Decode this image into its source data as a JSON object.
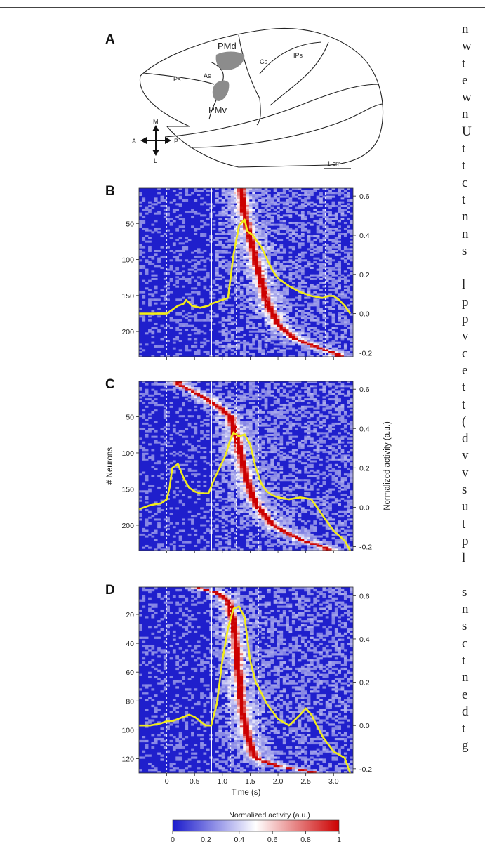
{
  "panels": [
    "A",
    "B",
    "C",
    "D"
  ],
  "brain": {
    "labels": {
      "pmd": "PMd",
      "pmv": "PMv",
      "as": "As",
      "ps": "Ps",
      "cs": "Cs",
      "ips": "IPs"
    },
    "compass": {
      "m": "M",
      "l": "L",
      "a": "A",
      "p": "P"
    },
    "scalebar": "1 cm",
    "area_color": "#8c8c8c"
  },
  "axes": {
    "ylabel": "# Neurons",
    "xlabel": "Time (s)",
    "right_label": "Normalized activity (a.u.)",
    "x_ticks": [
      "0",
      "0.5",
      "1.0",
      "1.5",
      "2.0",
      "2.5",
      "3.0"
    ],
    "right_ticks": [
      "0.6",
      "0.4",
      "0.2",
      "0.0",
      "-0.2"
    ]
  },
  "colorbar": {
    "title": "Normalized activity (a.u.)",
    "ticks": [
      "0",
      "0.2",
      "0.4",
      "0.6",
      "0.8",
      "1"
    ],
    "colors": [
      "#1a1acc",
      "#ffffff",
      "#cc0000"
    ]
  },
  "chart_data": [
    {
      "type": "heatmap",
      "panel": "B",
      "ylabel": "# Neurons",
      "xlim": [
        -0.5,
        3.35
      ],
      "ylim_neurons": [
        1,
        235
      ],
      "y_ticks": [
        50,
        100,
        150,
        200
      ],
      "right_ylim": [
        -0.22,
        0.64
      ],
      "markers_x": [
        0,
        0.8,
        1.25,
        1.8,
        2.85
      ],
      "event_line_solid_x": 0.8,
      "peak_ridge": {
        "x": [
          1.35,
          1.4,
          1.5,
          1.6,
          1.7,
          1.8,
          2.0,
          2.3,
          2.7,
          3.1
        ],
        "neuron": [
          10,
          40,
          70,
          100,
          130,
          160,
          190,
          210,
          222,
          232
        ]
      },
      "series": [
        {
          "x": [
            -0.5,
            -0.3,
            -0.1,
            0.0,
            0.1,
            0.2,
            0.3,
            0.35,
            0.45,
            0.6,
            0.75,
            0.8,
            0.9,
            1.0,
            1.1,
            1.2,
            1.3,
            1.4,
            1.45,
            1.55,
            1.7,
            1.8,
            1.9,
            2.0,
            2.2,
            2.4,
            2.6,
            2.8,
            2.9,
            3.0,
            3.1,
            3.2,
            3.3
          ],
          "y": [
            0.0,
            0.0,
            0.0,
            0.0,
            0.02,
            0.04,
            0.05,
            0.07,
            0.04,
            0.03,
            0.04,
            0.05,
            0.06,
            0.07,
            0.08,
            0.3,
            0.45,
            0.48,
            0.42,
            0.4,
            0.34,
            0.28,
            0.22,
            0.18,
            0.14,
            0.11,
            0.09,
            0.08,
            0.09,
            0.09,
            0.07,
            0.04,
            0.0
          ]
        }
      ]
    },
    {
      "type": "heatmap",
      "panel": "C",
      "ylabel": "# Neurons",
      "xlim": [
        -0.5,
        3.35
      ],
      "ylim_neurons": [
        1,
        235
      ],
      "y_ticks": [
        50,
        100,
        150,
        200
      ],
      "right_ylim": [
        -0.22,
        0.64
      ],
      "markers_x": [
        0,
        0.8,
        1.25,
        1.65,
        2.65
      ],
      "event_line_solid_x": 0.8,
      "peak_ridge": {
        "x": [
          0.2,
          0.6,
          0.9,
          1.15,
          1.25,
          1.35,
          1.45,
          1.6,
          1.9,
          2.4,
          2.9
        ],
        "neuron": [
          5,
          20,
          35,
          50,
          80,
          110,
          140,
          170,
          200,
          220,
          232
        ]
      },
      "series": [
        {
          "x": [
            -0.5,
            -0.3,
            -0.1,
            0.0,
            0.05,
            0.1,
            0.2,
            0.3,
            0.4,
            0.5,
            0.6,
            0.75,
            0.85,
            0.95,
            1.05,
            1.15,
            1.2,
            1.3,
            1.4,
            1.5,
            1.6,
            1.7,
            1.8,
            1.9,
            2.0,
            2.2,
            2.4,
            2.6,
            2.8,
            3.0,
            3.2,
            3.3
          ],
          "y": [
            -0.01,
            0.01,
            0.02,
            0.04,
            0.1,
            0.2,
            0.22,
            0.15,
            0.1,
            0.08,
            0.07,
            0.07,
            0.14,
            0.2,
            0.26,
            0.35,
            0.38,
            0.36,
            0.37,
            0.32,
            0.2,
            0.12,
            0.08,
            0.06,
            0.05,
            0.04,
            0.05,
            0.04,
            -0.04,
            -0.12,
            -0.17,
            -0.22
          ]
        }
      ]
    },
    {
      "type": "heatmap",
      "panel": "D",
      "ylabel": "# Neurons",
      "xlim": [
        -0.5,
        3.35
      ],
      "ylim_neurons": [
        1,
        130
      ],
      "y_ticks": [
        20,
        40,
        60,
        80,
        100,
        120
      ],
      "right_ylim": [
        -0.22,
        0.64
      ],
      "markers_x": [
        0,
        0.8,
        1.15,
        1.65,
        2.65
      ],
      "event_line_solid_x": 0.8,
      "peak_ridge": {
        "x": [
          0.5,
          0.9,
          1.1,
          1.2,
          1.25,
          1.3,
          1.35,
          1.45,
          1.6,
          2.0,
          2.6
        ],
        "neuron": [
          1,
          5,
          10,
          25,
          45,
          65,
          85,
          105,
          120,
          125,
          129
        ]
      },
      "series": [
        {
          "x": [
            -0.5,
            -0.3,
            -0.1,
            0.0,
            0.1,
            0.2,
            0.3,
            0.4,
            0.5,
            0.6,
            0.7,
            0.8,
            0.9,
            1.0,
            1.1,
            1.2,
            1.3,
            1.4,
            1.5,
            1.6,
            1.8,
            2.0,
            2.2,
            2.4,
            2.5,
            2.6,
            2.8,
            3.0,
            3.2,
            3.3
          ],
          "y": [
            0.0,
            0.0,
            0.01,
            0.02,
            0.02,
            0.03,
            0.04,
            0.05,
            0.04,
            0.02,
            0.0,
            0.0,
            0.1,
            0.3,
            0.45,
            0.54,
            0.55,
            0.5,
            0.3,
            0.2,
            0.1,
            0.03,
            0.0,
            0.05,
            0.08,
            0.05,
            -0.05,
            -0.12,
            -0.15,
            -0.22
          ]
        }
      ]
    }
  ],
  "body_text_fragments": [
    "n",
    "w",
    "t",
    "e",
    "w",
    "n",
    "U",
    "t",
    "t",
    "c",
    "t",
    "n",
    "n",
    "s",
    "",
    "l",
    "p",
    "p",
    "v",
    "c",
    "e",
    "t",
    "t",
    "(",
    "d",
    "v",
    "v",
    "s",
    "u",
    "t",
    "p",
    "l",
    "",
    "s",
    "n",
    "s",
    "c",
    "t",
    "n",
    "e",
    "d",
    "t",
    "g"
  ]
}
